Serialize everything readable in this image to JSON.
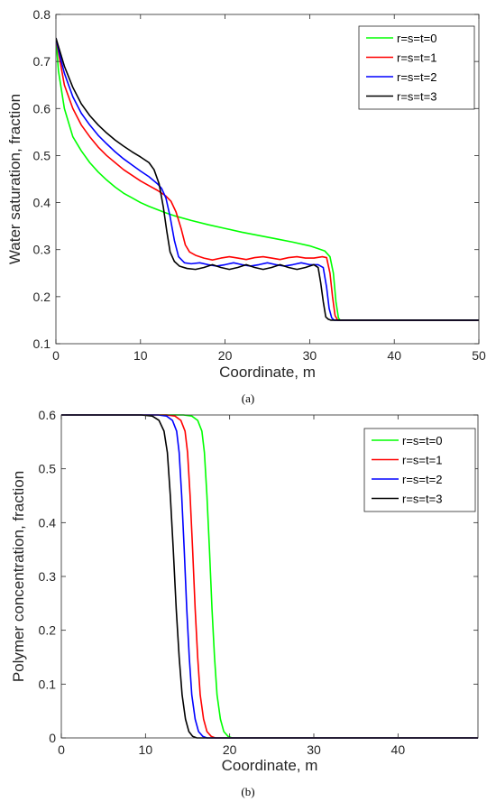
{
  "chart_data": [
    {
      "type": "line",
      "caption": "(a)",
      "xlabel": "Coordinate, m",
      "ylabel": "Water saturation, fraction",
      "xlim": [
        0,
        50
      ],
      "ylim": [
        0.1,
        0.8
      ],
      "xticks": [
        0,
        10,
        20,
        30,
        40,
        50
      ],
      "yticks": [
        0.1,
        0.2,
        0.3,
        0.4,
        0.5,
        0.6,
        0.7,
        0.8
      ],
      "grid": false,
      "legend_position": "top-right",
      "series": [
        {
          "name": "r=s=t=0",
          "color": "#00ff00",
          "points": [
            [
              0,
              0.75
            ],
            [
              0.3,
              0.68
            ],
            [
              1,
              0.6
            ],
            [
              2,
              0.54
            ],
            [
              3,
              0.51
            ],
            [
              4,
              0.485
            ],
            [
              5,
              0.465
            ],
            [
              6,
              0.448
            ],
            [
              7,
              0.433
            ],
            [
              8,
              0.42
            ],
            [
              9,
              0.41
            ],
            [
              10,
              0.4
            ],
            [
              11,
              0.392
            ],
            [
              12,
              0.385
            ],
            [
              13,
              0.378
            ],
            [
              14,
              0.372
            ],
            [
              16,
              0.362
            ],
            [
              18,
              0.353
            ],
            [
              20,
              0.345
            ],
            [
              22,
              0.337
            ],
            [
              24,
              0.33
            ],
            [
              26,
              0.323
            ],
            [
              28,
              0.316
            ],
            [
              30,
              0.308
            ],
            [
              31,
              0.302
            ],
            [
              31.8,
              0.297
            ],
            [
              32.4,
              0.285
            ],
            [
              32.8,
              0.25
            ],
            [
              33.1,
              0.19
            ],
            [
              33.4,
              0.155
            ],
            [
              33.6,
              0.15
            ],
            [
              50,
              0.15
            ]
          ]
        },
        {
          "name": "r=s=t=1",
          "color": "#ff0000",
          "points": [
            [
              0,
              0.75
            ],
            [
              0.5,
              0.7
            ],
            [
              1,
              0.65
            ],
            [
              2,
              0.6
            ],
            [
              3,
              0.565
            ],
            [
              4,
              0.54
            ],
            [
              5,
              0.518
            ],
            [
              6,
              0.5
            ],
            [
              7,
              0.485
            ],
            [
              8,
              0.47
            ],
            [
              9,
              0.458
            ],
            [
              10,
              0.446
            ],
            [
              11,
              0.436
            ],
            [
              12,
              0.426
            ],
            [
              13,
              0.414
            ],
            [
              13.6,
              0.403
            ],
            [
              14.2,
              0.38
            ],
            [
              14.8,
              0.345
            ],
            [
              15.3,
              0.31
            ],
            [
              15.8,
              0.295
            ],
            [
              16.5,
              0.288
            ],
            [
              17.5,
              0.282
            ],
            [
              18.5,
              0.278
            ],
            [
              19.5,
              0.282
            ],
            [
              20.5,
              0.285
            ],
            [
              21.5,
              0.282
            ],
            [
              22.5,
              0.279
            ],
            [
              23.5,
              0.283
            ],
            [
              24.5,
              0.285
            ],
            [
              25.5,
              0.282
            ],
            [
              26.5,
              0.279
            ],
            [
              27.5,
              0.283
            ],
            [
              28.5,
              0.285
            ],
            [
              29.5,
              0.282
            ],
            [
              30.5,
              0.282
            ],
            [
              31.5,
              0.285
            ],
            [
              32,
              0.283
            ],
            [
              32.4,
              0.25
            ],
            [
              32.7,
              0.2
            ],
            [
              33,
              0.16
            ],
            [
              33.3,
              0.15
            ],
            [
              50,
              0.15
            ]
          ]
        },
        {
          "name": "r=s=t=2",
          "color": "#0000ff",
          "points": [
            [
              0,
              0.75
            ],
            [
              0.5,
              0.71
            ],
            [
              1,
              0.675
            ],
            [
              2,
              0.625
            ],
            [
              3,
              0.59
            ],
            [
              4,
              0.565
            ],
            [
              5,
              0.543
            ],
            [
              6,
              0.525
            ],
            [
              7,
              0.508
            ],
            [
              8,
              0.493
            ],
            [
              9,
              0.48
            ],
            [
              10,
              0.467
            ],
            [
              11,
              0.455
            ],
            [
              12,
              0.44
            ],
            [
              12.5,
              0.43
            ],
            [
              13,
              0.41
            ],
            [
              13.5,
              0.37
            ],
            [
              14,
              0.32
            ],
            [
              14.5,
              0.285
            ],
            [
              15.2,
              0.272
            ],
            [
              16,
              0.27
            ],
            [
              17,
              0.272
            ],
            [
              18,
              0.268
            ],
            [
              19,
              0.265
            ],
            [
              20,
              0.268
            ],
            [
              21,
              0.272
            ],
            [
              22,
              0.268
            ],
            [
              23,
              0.265
            ],
            [
              24,
              0.268
            ],
            [
              25,
              0.272
            ],
            [
              26,
              0.268
            ],
            [
              27,
              0.265
            ],
            [
              28,
              0.268
            ],
            [
              29,
              0.272
            ],
            [
              30,
              0.268
            ],
            [
              31,
              0.268
            ],
            [
              31.6,
              0.262
            ],
            [
              32,
              0.22
            ],
            [
              32.3,
              0.175
            ],
            [
              32.6,
              0.155
            ],
            [
              32.9,
              0.15
            ],
            [
              50,
              0.15
            ]
          ]
        },
        {
          "name": "r=s=t=3",
          "color": "#000000",
          "points": [
            [
              0,
              0.75
            ],
            [
              0.5,
              0.72
            ],
            [
              1,
              0.69
            ],
            [
              2,
              0.645
            ],
            [
              3,
              0.61
            ],
            [
              4,
              0.585
            ],
            [
              5,
              0.565
            ],
            [
              6,
              0.548
            ],
            [
              7,
              0.533
            ],
            [
              8,
              0.52
            ],
            [
              9,
              0.508
            ],
            [
              10,
              0.497
            ],
            [
              11,
              0.485
            ],
            [
              11.6,
              0.47
            ],
            [
              12.2,
              0.44
            ],
            [
              12.7,
              0.39
            ],
            [
              13.1,
              0.34
            ],
            [
              13.5,
              0.295
            ],
            [
              14,
              0.275
            ],
            [
              14.6,
              0.265
            ],
            [
              15.5,
              0.26
            ],
            [
              16.5,
              0.258
            ],
            [
              17.5,
              0.262
            ],
            [
              18.5,
              0.268
            ],
            [
              19.5,
              0.262
            ],
            [
              20.5,
              0.258
            ],
            [
              21.5,
              0.262
            ],
            [
              22.5,
              0.268
            ],
            [
              23.5,
              0.262
            ],
            [
              24.5,
              0.258
            ],
            [
              25.5,
              0.262
            ],
            [
              26.5,
              0.268
            ],
            [
              27.5,
              0.262
            ],
            [
              28.5,
              0.258
            ],
            [
              29.5,
              0.262
            ],
            [
              30.5,
              0.268
            ],
            [
              31,
              0.262
            ],
            [
              31.3,
              0.23
            ],
            [
              31.6,
              0.19
            ],
            [
              31.9,
              0.157
            ],
            [
              32.2,
              0.152
            ],
            [
              32.5,
              0.15
            ],
            [
              50,
              0.15
            ]
          ]
        }
      ]
    },
    {
      "type": "line",
      "caption": "(b)",
      "xlabel": "Coordinate, m",
      "ylabel": "Polymer concentration, fraction",
      "xlim": [
        0,
        49.5
      ],
      "ylim": [
        0,
        0.6
      ],
      "xticks": [
        0,
        10,
        20,
        30,
        40
      ],
      "yticks": [
        0,
        0.1,
        0.2,
        0.3,
        0.4,
        0.5,
        0.6
      ],
      "grid": false,
      "legend_position": "top-right",
      "series": [
        {
          "name": "r=s=t=0",
          "color": "#00ff00",
          "points": [
            [
              0,
              0.6
            ],
            [
              14.5,
              0.6
            ],
            [
              15.5,
              0.598
            ],
            [
              16.2,
              0.59
            ],
            [
              16.7,
              0.57
            ],
            [
              17,
              0.53
            ],
            [
              17.3,
              0.45
            ],
            [
              17.6,
              0.35
            ],
            [
              17.9,
              0.24
            ],
            [
              18.2,
              0.15
            ],
            [
              18.5,
              0.08
            ],
            [
              18.9,
              0.035
            ],
            [
              19.3,
              0.012
            ],
            [
              19.8,
              0.003
            ],
            [
              20.3,
              0.0
            ],
            [
              49.5,
              0.0
            ]
          ]
        },
        {
          "name": "r=s=t=1",
          "color": "#ff0000",
          "points": [
            [
              0,
              0.6
            ],
            [
              12.5,
              0.6
            ],
            [
              13.5,
              0.598
            ],
            [
              14.2,
              0.59
            ],
            [
              14.7,
              0.57
            ],
            [
              15,
              0.53
            ],
            [
              15.3,
              0.45
            ],
            [
              15.6,
              0.35
            ],
            [
              15.9,
              0.24
            ],
            [
              16.2,
              0.15
            ],
            [
              16.5,
              0.08
            ],
            [
              16.9,
              0.035
            ],
            [
              17.3,
              0.012
            ],
            [
              17.8,
              0.003
            ],
            [
              18.3,
              0.0
            ],
            [
              49.5,
              0.0
            ]
          ]
        },
        {
          "name": "r=s=t=2",
          "color": "#0000ff",
          "points": [
            [
              0,
              0.6
            ],
            [
              11.5,
              0.6
            ],
            [
              12.5,
              0.598
            ],
            [
              13.2,
              0.59
            ],
            [
              13.7,
              0.57
            ],
            [
              14,
              0.53
            ],
            [
              14.3,
              0.45
            ],
            [
              14.6,
              0.35
            ],
            [
              14.9,
              0.24
            ],
            [
              15.2,
              0.15
            ],
            [
              15.5,
              0.08
            ],
            [
              15.9,
              0.035
            ],
            [
              16.3,
              0.012
            ],
            [
              16.8,
              0.003
            ],
            [
              17.3,
              0.0
            ],
            [
              49.5,
              0.0
            ]
          ]
        },
        {
          "name": "r=s=t=3",
          "color": "#000000",
          "points": [
            [
              0,
              0.6
            ],
            [
              9.5,
              0.6
            ],
            [
              10.8,
              0.598
            ],
            [
              11.6,
              0.59
            ],
            [
              12.2,
              0.57
            ],
            [
              12.6,
              0.53
            ],
            [
              12.95,
              0.45
            ],
            [
              13.3,
              0.35
            ],
            [
              13.65,
              0.24
            ],
            [
              14,
              0.15
            ],
            [
              14.35,
              0.08
            ],
            [
              14.75,
              0.035
            ],
            [
              15.15,
              0.012
            ],
            [
              15.6,
              0.003
            ],
            [
              16.1,
              0.0
            ],
            [
              49.5,
              0.0
            ]
          ]
        }
      ]
    }
  ]
}
